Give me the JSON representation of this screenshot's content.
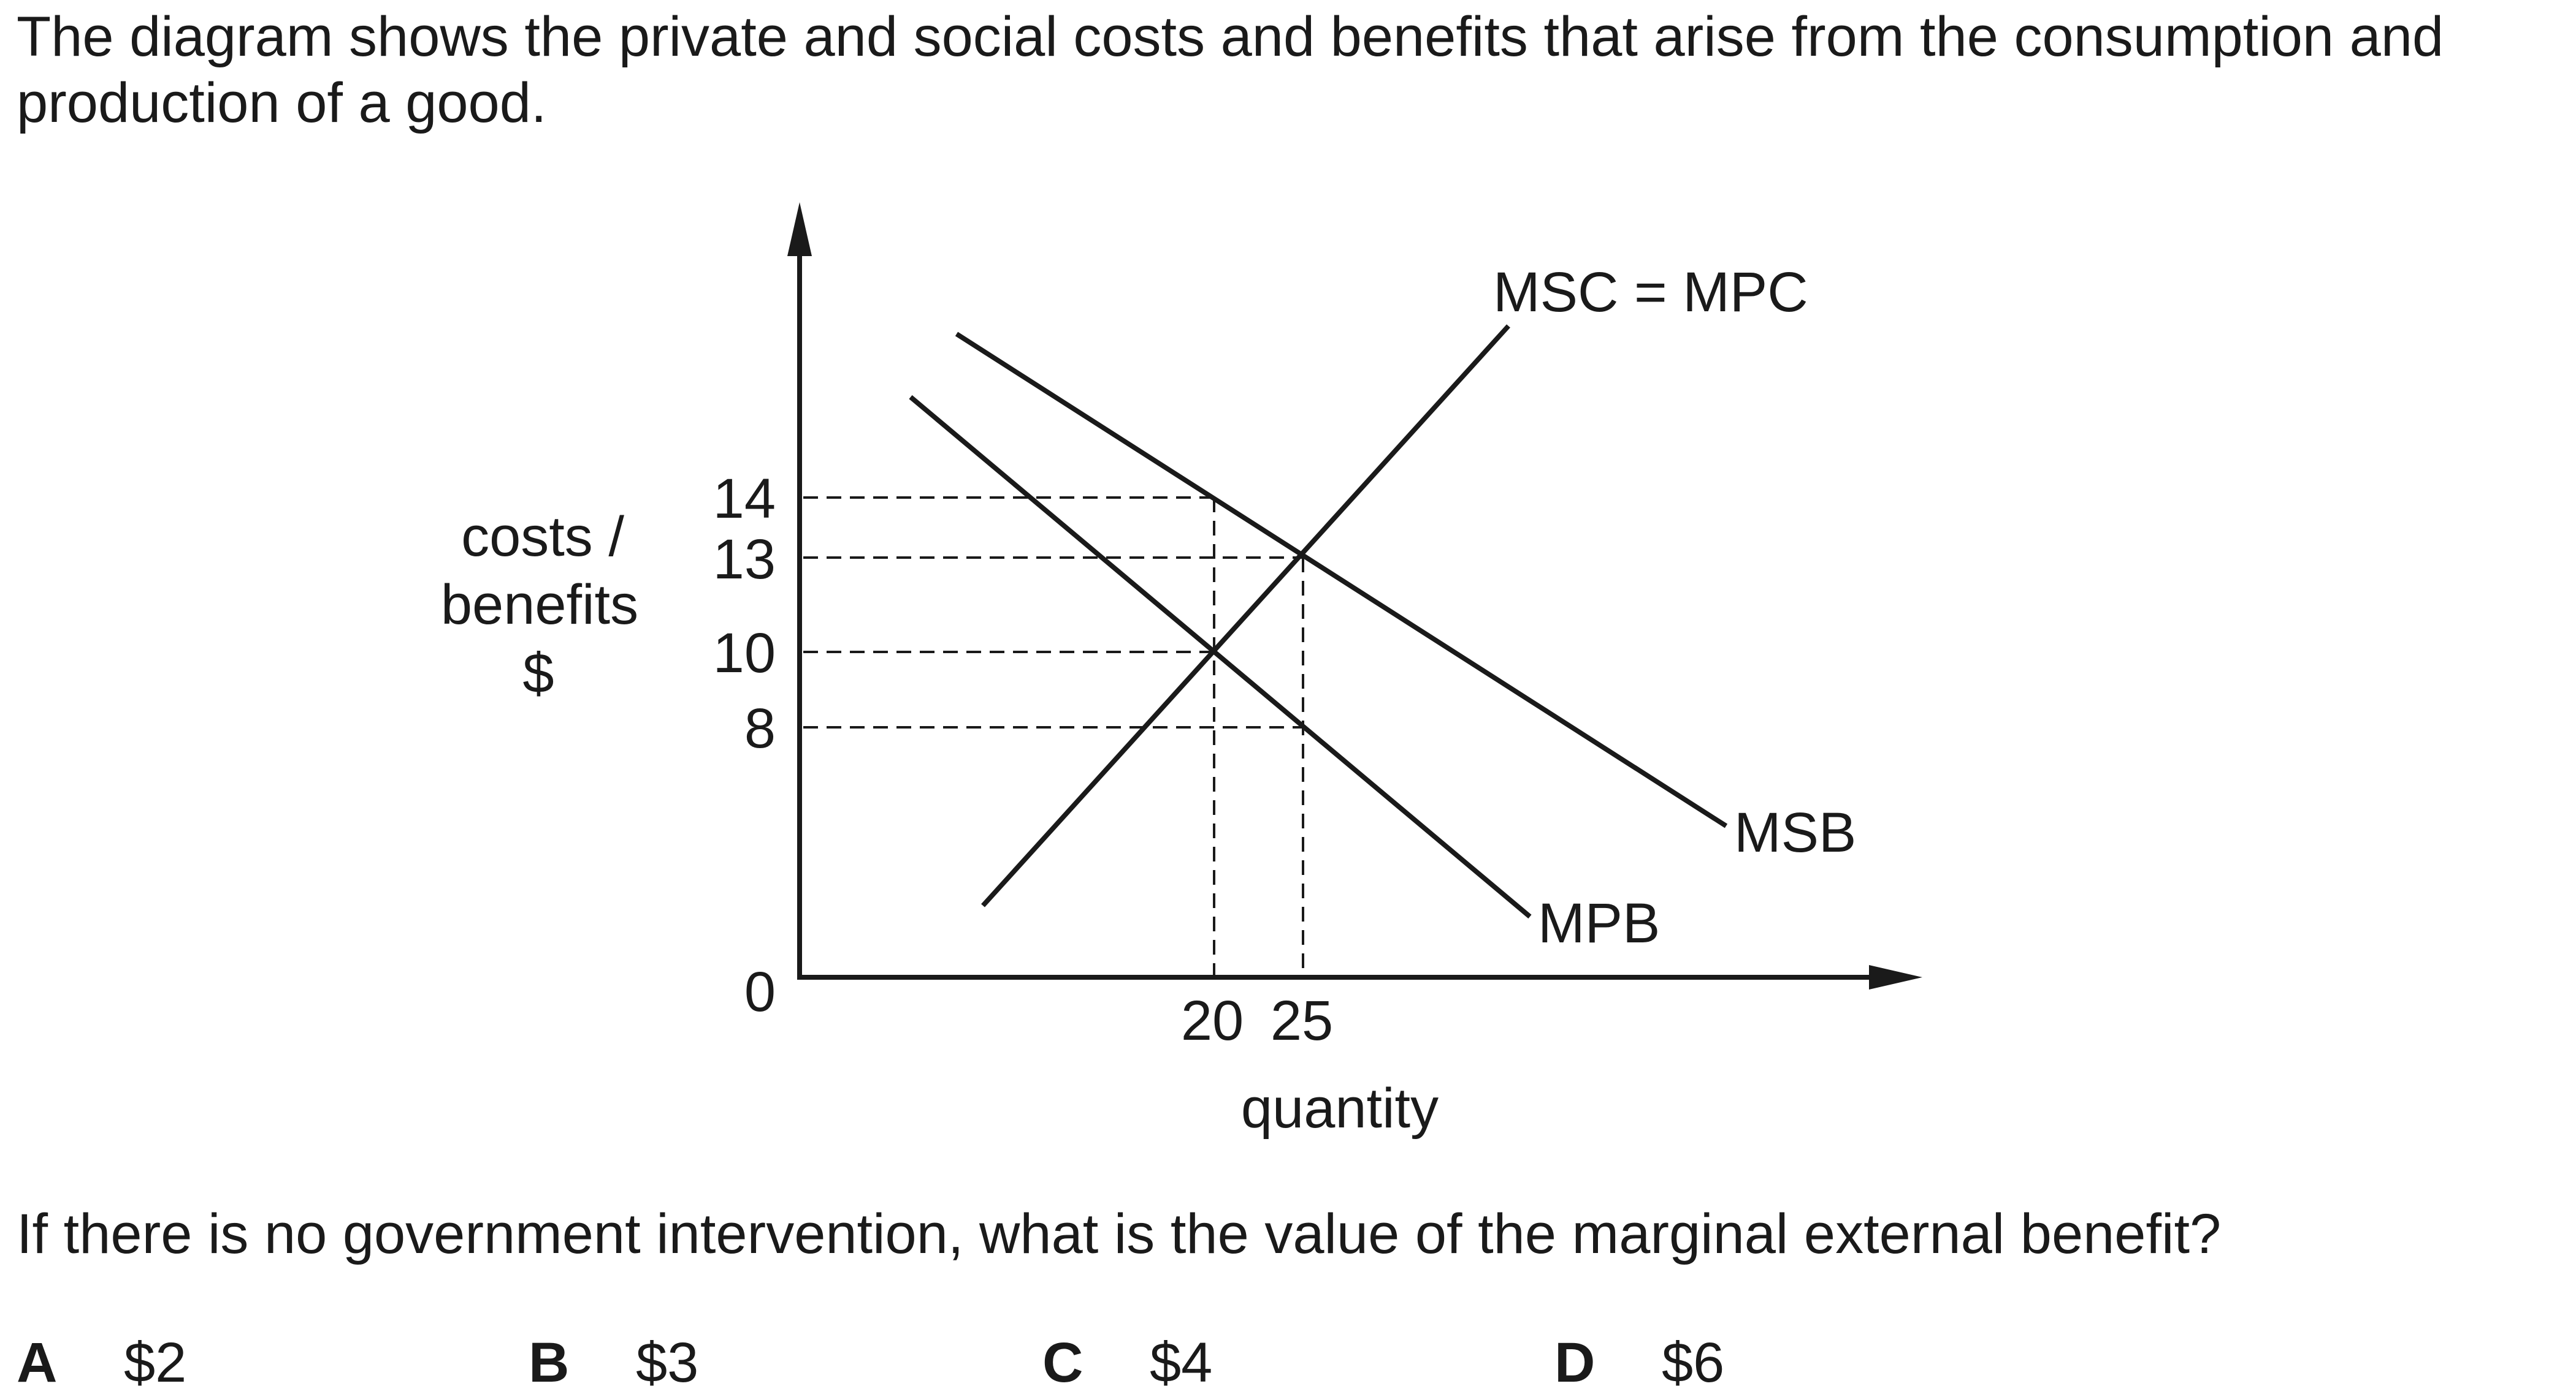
{
  "question": {
    "intro": "The diagram shows the private and social costs and benefits that arise from the consumption and production of a good.",
    "prompt": "If there is no government intervention, what is the value of the marginal external benefit?",
    "options": [
      {
        "letter": "A",
        "value": "$2"
      },
      {
        "letter": "B",
        "value": "$3"
      },
      {
        "letter": "C",
        "value": "$4"
      },
      {
        "letter": "D",
        "value": "$6"
      }
    ]
  },
  "diagram": {
    "y_axis_label": [
      "costs /",
      "benefits",
      "$"
    ],
    "x_axis_label": "quantity",
    "origin_label": "0",
    "y_ticks": [
      "14",
      "13",
      "10",
      "8"
    ],
    "x_ticks": [
      "20",
      "25"
    ],
    "curves": {
      "supply": "MSC = MPC",
      "social_benefit": "MSB",
      "private_benefit": "MPB"
    }
  }
}
